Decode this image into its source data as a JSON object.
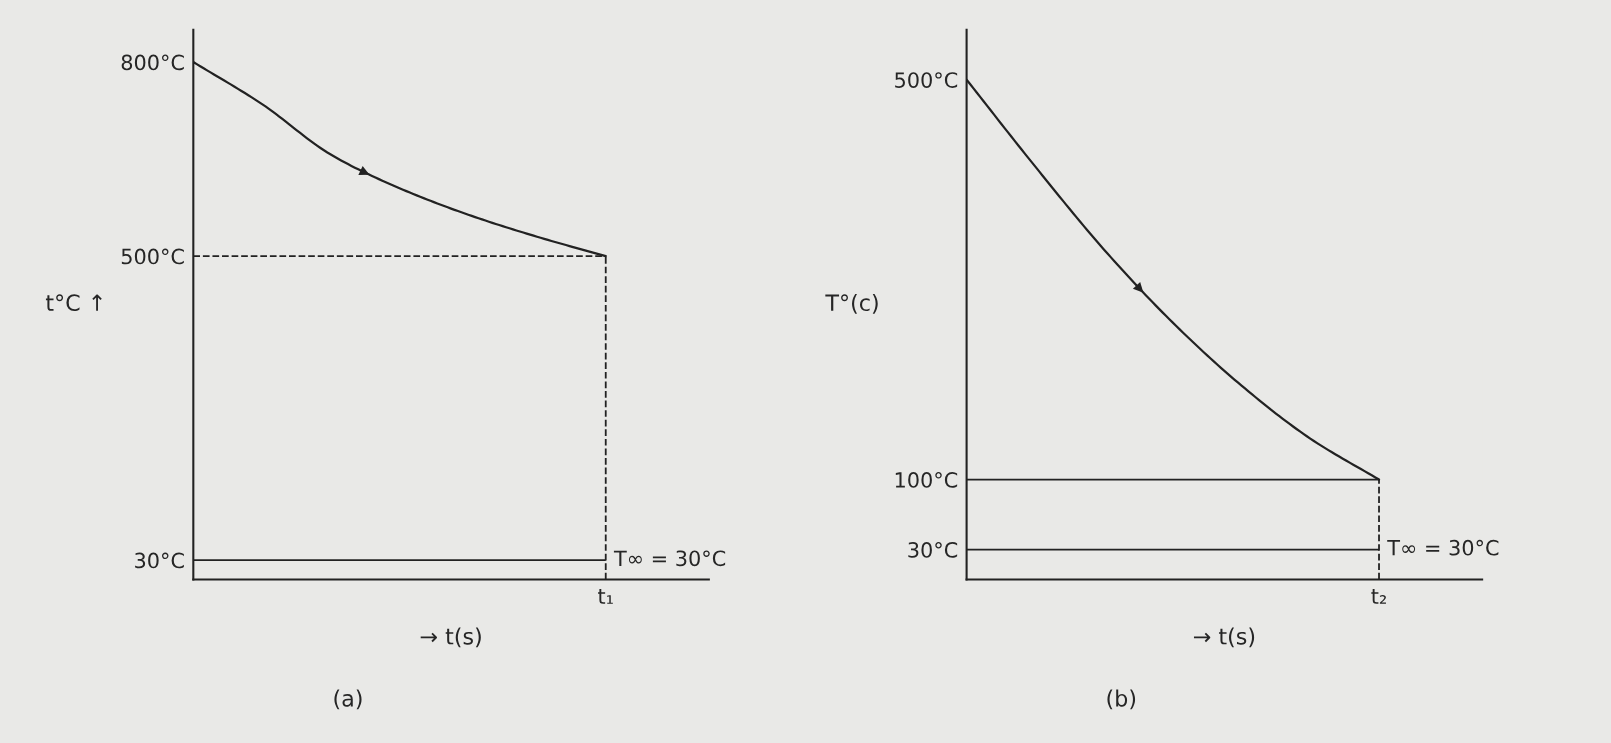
{
  "chart_data": [
    {
      "type": "line",
      "xlabel": "→ t(s)",
      "ylabel": "t°C ↑",
      "annotations": [
        "(a)"
      ],
      "grid": false,
      "legend": false,
      "marker": "none",
      "line_style": "solid",
      "categories": [
        null,
        null,
        null,
        null,
        null,
        null,
        "t₁"
      ],
      "ylim": [
        0,
        850
      ],
      "yticks": [
        {
          "value": 30,
          "label": "30°C"
        },
        {
          "value": 500,
          "label": "500°C"
        },
        {
          "value": 800,
          "label": "800°C"
        }
      ],
      "series": [
        {
          "color": "#222222",
          "values": [
            800,
            735,
            657,
            605,
            564,
            530,
            500
          ]
        }
      ],
      "ref_lines": [
        {
          "axis": "y",
          "value": 500,
          "line_style": "dashed",
          "color": "#222222"
        },
        {
          "axis": "y",
          "value": 30,
          "line_style": "solid",
          "color": "#222222",
          "label": "T∞ = 30°C"
        },
        {
          "axis": "x",
          "value": "t₁",
          "line_style": "dashed",
          "color": "#222222"
        }
      ]
    },
    {
      "type": "line",
      "xlabel": "→ t(s)",
      "ylabel": "T°(c)",
      "annotations": [
        "(b)"
      ],
      "grid": false,
      "legend": false,
      "marker": "none",
      "line_style": "solid",
      "categories": [
        null,
        null,
        null,
        null,
        null,
        null,
        "t₂"
      ],
      "ylim": [
        0,
        550
      ],
      "yticks": [
        {
          "value": 30,
          "label": "30°C"
        },
        {
          "value": 100,
          "label": "100°C"
        },
        {
          "value": 500,
          "label": "500°C"
        }
      ],
      "series": [
        {
          "color": "#222222",
          "values": [
            500,
            413,
            330,
            257,
            194,
            141,
            100
          ]
        }
      ],
      "ref_lines": [
        {
          "axis": "y",
          "value": 100,
          "line_style": "solid",
          "color": "#222222"
        },
        {
          "axis": "y",
          "value": 30,
          "line_style": "solid",
          "color": "#222222",
          "label": "T∞ = 30°C"
        },
        {
          "axis": "x",
          "value": "t₂",
          "line_style": "dashed",
          "color": "#222222"
        }
      ]
    }
  ]
}
